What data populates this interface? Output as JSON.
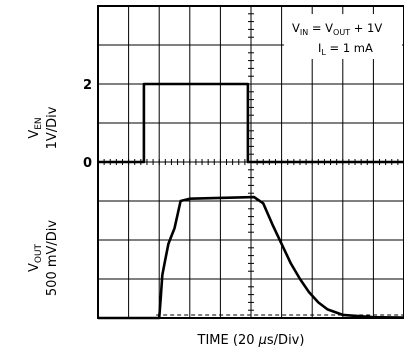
{
  "chart_data": {
    "type": "line",
    "title": "",
    "xlabel": {
      "prefix": "TIME (20 ",
      "unit_greek": "μ",
      "suffix": "s/Div)"
    },
    "grid": true,
    "divisions": {
      "x": 10,
      "y": 8
    },
    "annotation": {
      "line1": {
        "v": "V",
        "sub1": "IN",
        "mid": " = V",
        "sub2": "OUT",
        "tail": " + 1V"
      },
      "line2": {
        "v": "I",
        "sub1": "L",
        "tail": " = 1 mA"
      }
    },
    "channels": [
      {
        "id": "ven",
        "label_main": "V",
        "label_sub": "EN",
        "scale": "1V/Div",
        "unit": "V",
        "volts_per_div": 1,
        "ground_div": 4,
        "ticks": [
          {
            "label": "2",
            "value": 2
          },
          {
            "label": "0",
            "value": 0
          }
        ],
        "series": {
          "x_div": [
            0,
            1.5,
            1.5,
            4.9,
            4.9,
            10
          ],
          "y": [
            0,
            0,
            2,
            2,
            0,
            0
          ]
        }
      },
      {
        "id": "vout",
        "label_main": "V",
        "label_sub": "OUT",
        "scale": "500 mV/Div",
        "unit": "V",
        "volts_per_div": 0.5,
        "ground_div": 0,
        "ticks": [],
        "series": {
          "x_div": [
            0,
            2.0,
            2.05,
            2.1,
            2.2,
            2.3,
            2.4,
            2.5,
            2.7,
            3.0,
            5.1,
            5.4,
            5.7,
            6.0,
            6.3,
            6.6,
            6.9,
            7.2,
            7.5,
            8.0,
            9.0,
            10
          ],
          "y": [
            0,
            0,
            0.25,
            0.55,
            0.75,
            0.95,
            1.05,
            1.15,
            1.5,
            1.53,
            1.55,
            1.47,
            1.2,
            0.95,
            0.7,
            0.5,
            0.33,
            0.2,
            0.11,
            0.04,
            0.01,
            0.005
          ]
        }
      }
    ]
  }
}
